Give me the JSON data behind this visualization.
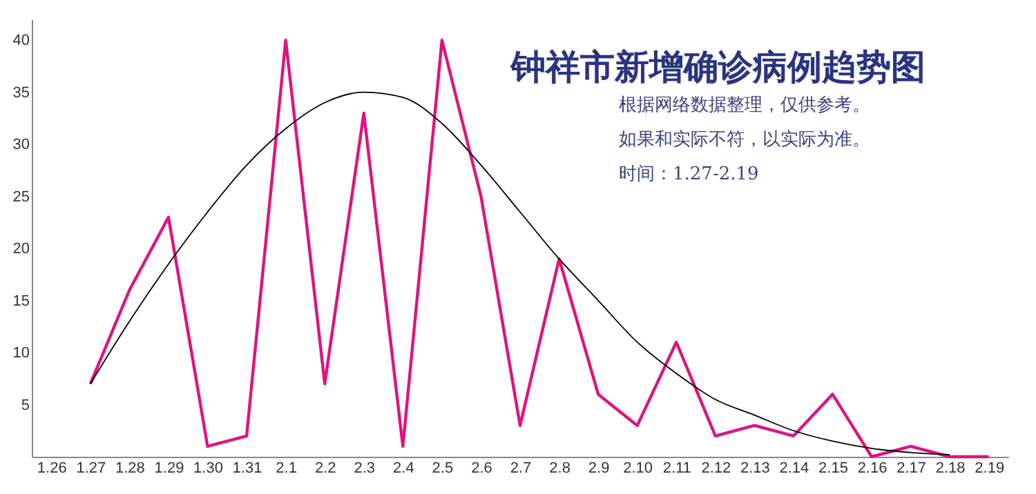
{
  "chart_data": {
    "type": "line",
    "title": "钟祥市新增确诊病例趋势图",
    "annotations": [
      "根据网络数据整理，仅供参考。",
      "如果和实际不符，以实际为准。",
      "时间：1.27-2.19"
    ],
    "categories": [
      "1.26",
      "1.27",
      "1.28",
      "1.29",
      "1.30",
      "1.31",
      "2.1",
      "2.2",
      "2.3",
      "2.4",
      "2.5",
      "2.6",
      "2.7",
      "2.8",
      "2.9",
      "2.10",
      "2.11",
      "2.12",
      "2.13",
      "2.14",
      "2.15",
      "2.16",
      "2.17",
      "2.18",
      "2.19"
    ],
    "series": [
      {
        "color": "#e0127f",
        "values": [
          null,
          7,
          16,
          23,
          1,
          2,
          40,
          7,
          33,
          1,
          40,
          25,
          3,
          19,
          6,
          3,
          11,
          2,
          3,
          2,
          6,
          0,
          1,
          0,
          0
        ]
      },
      {
        "color": "#000000",
        "values": [
          null,
          7,
          13,
          18.5,
          23.5,
          28,
          31.5,
          34,
          35,
          34.5,
          32,
          28,
          23.5,
          19,
          15,
          11,
          8,
          5.5,
          4,
          2.5,
          1.5,
          0.8,
          0.4,
          0.2,
          null
        ]
      }
    ],
    "ylim": [
      0,
      42
    ],
    "yticks": [
      5,
      10,
      15,
      20,
      25,
      30,
      35,
      40
    ],
    "grid": false,
    "marker": "none",
    "line_style": "solid"
  }
}
